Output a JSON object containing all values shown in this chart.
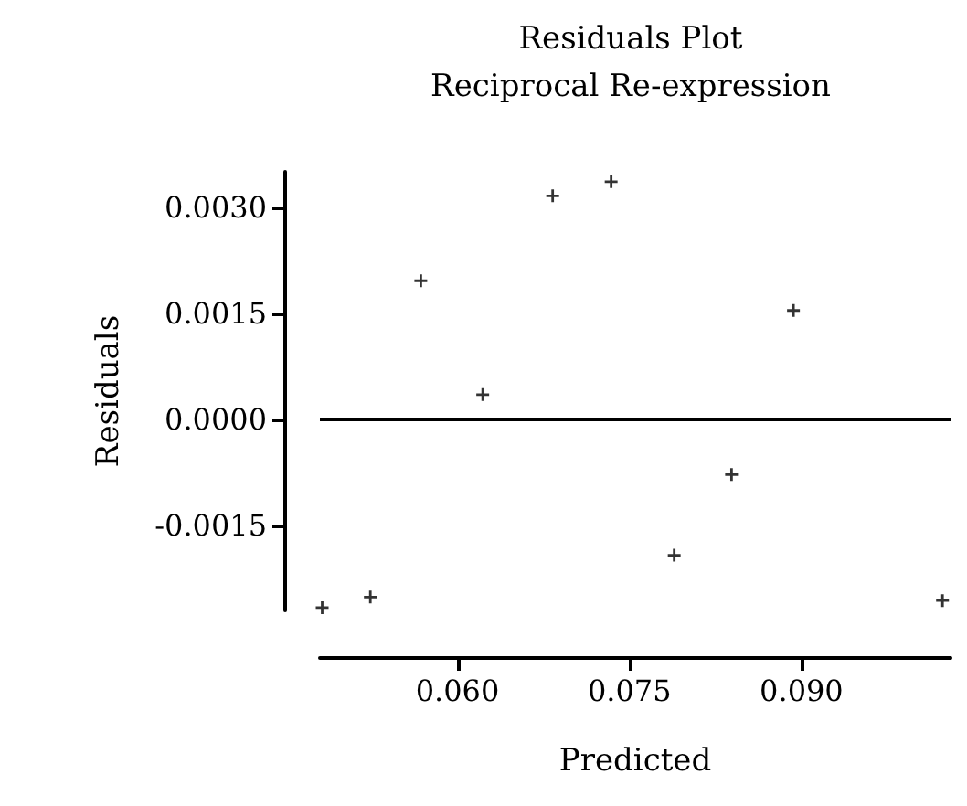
{
  "chart_data": {
    "type": "scatter",
    "title": "Residuals Plot",
    "subtitle": "Reciprocal Re-expression",
    "xlabel": "Predicted",
    "ylabel": "Residuals",
    "x": [
      0.0482,
      0.0524,
      0.0568,
      0.0622,
      0.0683,
      0.0734,
      0.0789,
      0.0839,
      0.0893,
      0.1023
    ],
    "series": [
      {
        "color": "#000000",
        "values": [
          -0.00266,
          -0.00251,
          0.00196,
          0.00035,
          0.00316,
          0.00336,
          -0.00192,
          -0.00078,
          0.00154,
          -0.00256
        ]
      }
    ],
    "xlim": [
      0.048,
      0.103
    ],
    "xticks": [
      {
        "value": 0.06,
        "label": "0.060"
      },
      {
        "value": 0.075,
        "label": "0.075"
      },
      {
        "value": 0.09,
        "label": "0.090"
      }
    ],
    "ylim": [
      -0.0027,
      0.0035
    ],
    "yticks": [
      {
        "value": -0.0015,
        "label": "-0.0015"
      },
      {
        "value": 0,
        "label": "0.0000"
      },
      {
        "value": 0.0015,
        "label": "0.0015"
      },
      {
        "value": 0.003,
        "label": "0.0030"
      }
    ],
    "ref_lines": [
      {
        "axis": "y",
        "value": 0,
        "color": "#000000"
      }
    ],
    "marker": "cross",
    "grid": false
  }
}
